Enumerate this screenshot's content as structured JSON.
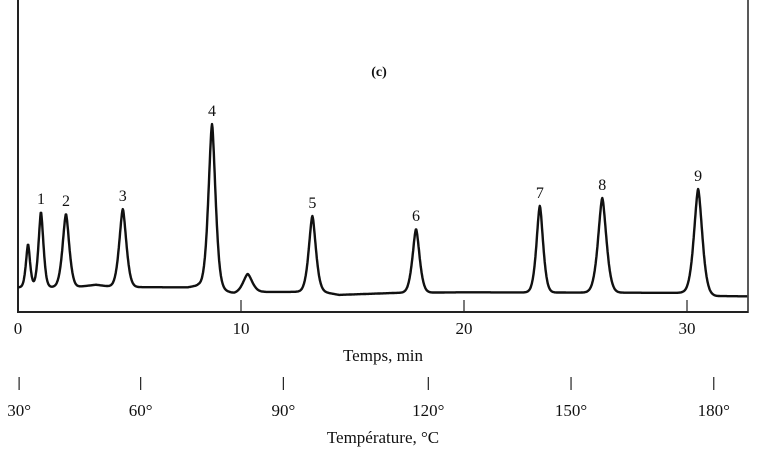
{
  "chart_data": {
    "type": "line",
    "title": "(c)",
    "xlabel": "Temps, min",
    "x2label": "Température, °C",
    "ylabel": "",
    "xlim": [
      0,
      32.7
    ],
    "ylim": [
      0,
      100
    ],
    "grid": false,
    "x_ticks": [
      {
        "value": 0,
        "label": "0"
      },
      {
        "value": 10,
        "label": "10"
      },
      {
        "value": 20,
        "label": "20"
      },
      {
        "value": 30,
        "label": "30"
      }
    ],
    "temperature_ticks": [
      {
        "time": 0.05,
        "label": "30°"
      },
      {
        "time": 5.5,
        "label": "60°"
      },
      {
        "time": 11.9,
        "label": "90°"
      },
      {
        "time": 18.4,
        "label": "120°"
      },
      {
        "time": 24.8,
        "label": "150°"
      },
      {
        "time": 31.2,
        "label": "180°"
      }
    ],
    "peaks": [
      {
        "label": "",
        "time": 0.45,
        "height": 23.4,
        "sigma": 0.1
      },
      {
        "label": "1",
        "time": 1.03,
        "height": 34.5,
        "sigma": 0.12
      },
      {
        "label": "2",
        "time": 2.15,
        "height": 33.8,
        "sigma": 0.16
      },
      {
        "label": "3",
        "time": 4.7,
        "height": 35.5,
        "sigma": 0.17
      },
      {
        "label": "4",
        "time": 8.7,
        "height": 64.8,
        "sigma": 0.17
      },
      {
        "label": "",
        "time": 10.3,
        "height": 13.1,
        "sigma": 0.22
      },
      {
        "label": "5",
        "time": 13.2,
        "height": 33.1,
        "sigma": 0.17
      },
      {
        "label": "6",
        "time": 17.85,
        "height": 28.6,
        "sigma": 0.17
      },
      {
        "label": "7",
        "time": 23.4,
        "height": 36.6,
        "sigma": 0.16
      },
      {
        "label": "8",
        "time": 26.2,
        "height": 39.3,
        "sigma": 0.2
      },
      {
        "label": "9",
        "time": 30.5,
        "height": 42.4,
        "sigma": 0.2
      }
    ],
    "baseline": [
      [
        0,
        8.5
      ],
      [
        2.6,
        8.6
      ],
      [
        3.5,
        9.4
      ],
      [
        4.3,
        8.6
      ],
      [
        7.6,
        8.5
      ],
      [
        8.1,
        9.2
      ],
      [
        9.2,
        7.5
      ],
      [
        9.7,
        6.4
      ],
      [
        11.0,
        6.9
      ],
      [
        13.6,
        7.0
      ],
      [
        14.4,
        5.9
      ],
      [
        17.0,
        6.6
      ],
      [
        20.0,
        6.8
      ],
      [
        29.8,
        6.6
      ],
      [
        31.3,
        5.5
      ],
      [
        32.7,
        5.4
      ]
    ]
  }
}
